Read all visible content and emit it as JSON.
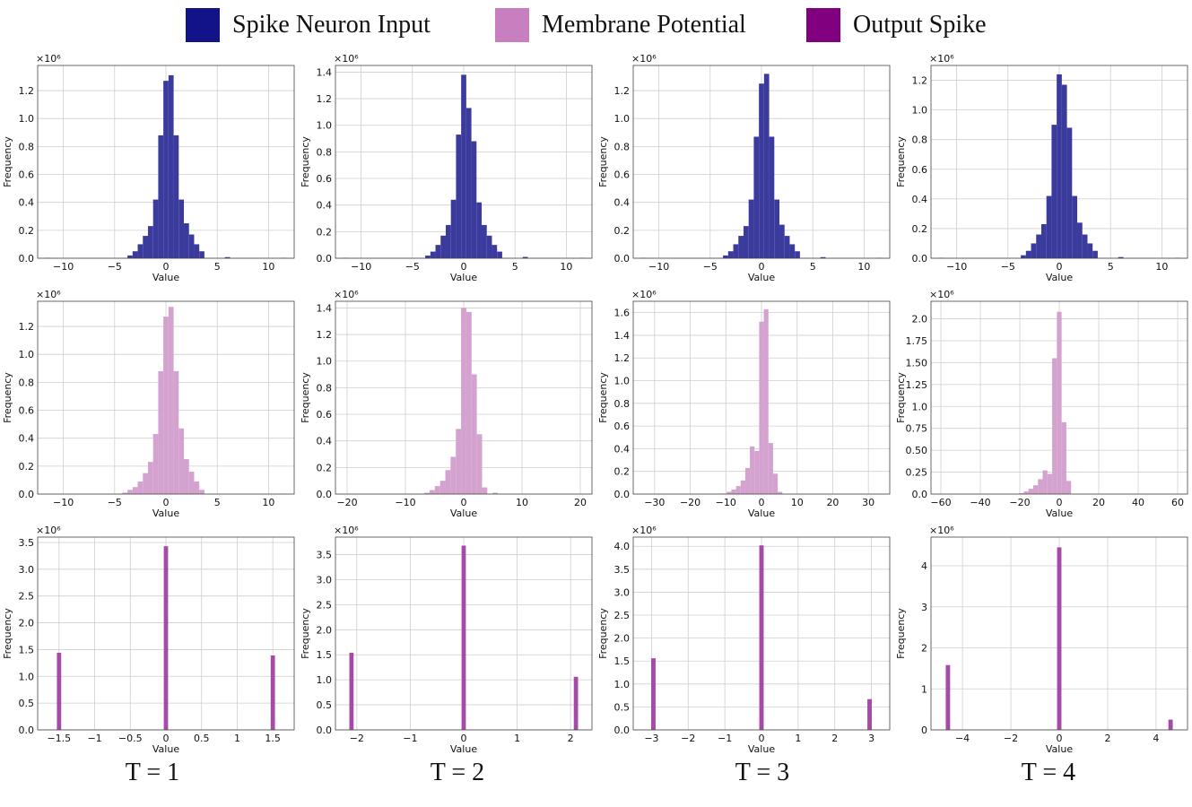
{
  "legend": [
    {
      "label": "Spike Neuron Input",
      "color": "#121289"
    },
    {
      "label": "Membrane Potential",
      "color": "#c77fc0"
    },
    {
      "label": "Output Spike",
      "color": "#800080"
    }
  ],
  "column_labels": [
    "T = 1",
    "T = 2",
    "T = 3",
    "T = 4"
  ],
  "colors": {
    "input": "#3b3b9e",
    "membrane": "#d4a2cf",
    "output": "#a64aa8",
    "grid": "#cfcfcf"
  },
  "chart_data": [
    {
      "type": "bar",
      "row": "input",
      "col": 1,
      "xlabel": "Value",
      "ylabel": "Frequency",
      "scale_label": "×10⁶",
      "xlim": [
        -12.5,
        12.5
      ],
      "ylim": [
        0,
        1.38
      ],
      "xticks": [
        -10,
        -5,
        0,
        5,
        10
      ],
      "yticks": [
        0,
        0.2,
        0.4,
        0.6,
        0.8,
        1.0,
        1.2
      ],
      "bin_width": 0.5,
      "x": [
        -11.5,
        -3.5,
        -3,
        -2.5,
        -2,
        -1.5,
        -1,
        -0.5,
        0,
        0.5,
        1,
        1.5,
        2,
        2.5,
        3,
        3.5,
        6,
        11.5
      ],
      "values": [
        0.003,
        0.02,
        0.05,
        0.1,
        0.16,
        0.23,
        0.42,
        0.88,
        1.27,
        1.31,
        0.88,
        0.42,
        0.25,
        0.17,
        0.1,
        0.05,
        0.008,
        0.003
      ]
    },
    {
      "type": "bar",
      "row": "input",
      "col": 2,
      "xlabel": "Value",
      "ylabel": "Frequency",
      "scale_label": "×10⁶",
      "xlim": [
        -12.5,
        12.5
      ],
      "ylim": [
        0,
        1.45
      ],
      "xticks": [
        -10,
        -5,
        0,
        5,
        10
      ],
      "yticks": [
        0,
        0.2,
        0.4,
        0.6,
        0.8,
        1.0,
        1.2,
        1.4
      ],
      "bin_width": 0.5,
      "x": [
        -11.5,
        -3.5,
        -3,
        -2.5,
        -2,
        -1.5,
        -1,
        -0.5,
        0,
        0.5,
        1,
        1.5,
        2,
        2.5,
        3,
        3.5,
        6,
        11.5
      ],
      "values": [
        0.003,
        0.02,
        0.05,
        0.1,
        0.17,
        0.25,
        0.44,
        0.93,
        1.38,
        1.13,
        0.88,
        0.42,
        0.25,
        0.17,
        0.1,
        0.05,
        0.01,
        0.003
      ]
    },
    {
      "type": "bar",
      "row": "input",
      "col": 3,
      "xlabel": "Value",
      "ylabel": "Frequency",
      "scale_label": "×10⁶",
      "xlim": [
        -12.5,
        12.5
      ],
      "ylim": [
        0,
        1.38
      ],
      "xticks": [
        -10,
        -5,
        0,
        5,
        10
      ],
      "yticks": [
        0,
        0.2,
        0.4,
        0.6,
        0.8,
        1.0,
        1.2
      ],
      "bin_width": 0.5,
      "x": [
        -11.5,
        -3.5,
        -3,
        -2.5,
        -2,
        -1.5,
        -1,
        -0.5,
        0,
        0.5,
        1,
        1.5,
        2,
        2.5,
        3,
        3.5,
        6,
        11.5
      ],
      "values": [
        0.003,
        0.02,
        0.05,
        0.1,
        0.16,
        0.23,
        0.42,
        0.87,
        1.25,
        1.32,
        0.87,
        0.42,
        0.24,
        0.16,
        0.1,
        0.05,
        0.008,
        0.003
      ]
    },
    {
      "type": "bar",
      "row": "input",
      "col": 4,
      "xlabel": "Value",
      "ylabel": "Frequency",
      "scale_label": "×10⁶",
      "xlim": [
        -12.5,
        12.5
      ],
      "ylim": [
        0,
        1.3
      ],
      "xticks": [
        -10,
        -5,
        0,
        5,
        10
      ],
      "yticks": [
        0,
        0.2,
        0.4,
        0.6,
        0.8,
        1.0,
        1.2
      ],
      "bin_width": 0.5,
      "x": [
        -11.5,
        -3.5,
        -3,
        -2.5,
        -2,
        -1.5,
        -1,
        -0.5,
        0,
        0.5,
        1,
        1.5,
        2,
        2.5,
        3,
        3.5,
        6,
        11.5
      ],
      "values": [
        0.003,
        0.02,
        0.05,
        0.1,
        0.16,
        0.23,
        0.42,
        0.9,
        1.24,
        1.17,
        0.88,
        0.42,
        0.24,
        0.16,
        0.1,
        0.05,
        0.008,
        0.003
      ]
    },
    {
      "type": "bar",
      "row": "membrane",
      "col": 1,
      "xlabel": "Value",
      "ylabel": "Frequency",
      "scale_label": "×10⁶",
      "xlim": [
        -12.5,
        12.5
      ],
      "ylim": [
        0,
        1.38
      ],
      "xticks": [
        -10,
        -5,
        0,
        5,
        10
      ],
      "yticks": [
        0,
        0.2,
        0.4,
        0.6,
        0.8,
        1.0,
        1.2
      ],
      "bin_width": 0.5,
      "x": [
        -4,
        -3.5,
        -3,
        -2.5,
        -2,
        -1.5,
        -1,
        -0.5,
        0,
        0.5,
        1,
        1.5,
        2,
        2.5,
        3,
        3.5,
        11.5
      ],
      "values": [
        0.01,
        0.03,
        0.05,
        0.09,
        0.15,
        0.23,
        0.43,
        0.88,
        1.27,
        1.34,
        0.88,
        0.47,
        0.25,
        0.16,
        0.09,
        0.03,
        0.003
      ]
    },
    {
      "type": "bar",
      "row": "membrane",
      "col": 2,
      "xlabel": "Value",
      "ylabel": "Frequency",
      "scale_label": "×10⁶",
      "xlim": [
        -22,
        22
      ],
      "ylim": [
        0,
        1.45
      ],
      "xticks": [
        -20,
        -10,
        0,
        10,
        20
      ],
      "yticks": [
        0,
        0.2,
        0.4,
        0.6,
        0.8,
        1.0,
        1.2,
        1.4
      ],
      "bin_width": 0.9,
      "x": [
        -6.3,
        -5.4,
        -4.5,
        -3.6,
        -2.7,
        -1.8,
        -0.9,
        0,
        0.9,
        1.8,
        2.7,
        3.6,
        5.4,
        20
      ],
      "values": [
        0.01,
        0.03,
        0.06,
        0.1,
        0.18,
        0.28,
        0.49,
        1.4,
        1.37,
        0.9,
        0.45,
        0.05,
        0.01,
        0.003
      ]
    },
    {
      "type": "bar",
      "row": "membrane",
      "col": 3,
      "xlabel": "Value",
      "ylabel": "Frequency",
      "scale_label": "×10⁶",
      "xlim": [
        -36,
        36
      ],
      "ylim": [
        0,
        1.7
      ],
      "xticks": [
        -30,
        -20,
        -10,
        0,
        10,
        20,
        30
      ],
      "yticks": [
        0,
        0.2,
        0.4,
        0.6,
        0.8,
        1.0,
        1.2,
        1.4,
        1.6
      ],
      "bin_width": 1.3,
      "x": [
        -10.4,
        -9.1,
        -7.8,
        -6.5,
        -5.2,
        -3.9,
        -2.6,
        -1.3,
        0,
        1.3,
        2.6,
        3.9,
        5.2,
        32
      ],
      "values": [
        0.005,
        0.02,
        0.04,
        0.07,
        0.12,
        0.23,
        0.42,
        0.38,
        1.52,
        1.63,
        0.45,
        0.18,
        0.02,
        0.002
      ]
    },
    {
      "type": "bar",
      "row": "membrane",
      "col": 4,
      "xlabel": "Value",
      "ylabel": "Frequency",
      "scale_label": "×10⁶",
      "xlim": [
        -65,
        65
      ],
      "ylim": [
        0,
        2.2
      ],
      "xticks": [
        -60,
        -40,
        -20,
        0,
        20,
        40,
        60
      ],
      "yticks": [
        0,
        0.25,
        0.5,
        0.75,
        1.0,
        1.25,
        1.5,
        1.75,
        2.0
      ],
      "bin_width": 2.4,
      "x": [
        -19.2,
        -16.8,
        -14.4,
        -12,
        -9.6,
        -7.2,
        -4.8,
        -2.4,
        0,
        2.4,
        4.8,
        60
      ],
      "values": [
        0.01,
        0.03,
        0.06,
        0.1,
        0.17,
        0.27,
        0.23,
        1.55,
        2.08,
        0.82,
        0.15,
        0.003
      ]
    },
    {
      "type": "bar",
      "row": "output",
      "col": 1,
      "xlabel": "Value",
      "ylabel": "Frequency",
      "scale_label": "×10⁶",
      "xlim": [
        -1.8,
        1.8
      ],
      "ylim": [
        0,
        3.6
      ],
      "xticks": [
        -1.5,
        -1.0,
        -0.5,
        0.0,
        0.5,
        1.0,
        1.5
      ],
      "yticks": [
        0,
        0.5,
        1.0,
        1.5,
        2.0,
        2.5,
        3.0,
        3.5
      ],
      "bin_width": 0.06,
      "x": [
        -1.5,
        0,
        1.5
      ],
      "values": [
        1.44,
        3.43,
        1.39
      ]
    },
    {
      "type": "bar",
      "row": "output",
      "col": 2,
      "xlabel": "Value",
      "ylabel": "Frequency",
      "scale_label": "×10⁶",
      "xlim": [
        -2.4,
        2.4
      ],
      "ylim": [
        0,
        3.85
      ],
      "xticks": [
        -2,
        -1,
        0,
        1,
        2
      ],
      "yticks": [
        0,
        0.5,
        1.0,
        1.5,
        2.0,
        2.5,
        3.0,
        3.5
      ],
      "bin_width": 0.08,
      "x": [
        -2.1,
        0,
        2.1
      ],
      "values": [
        1.54,
        3.68,
        1.06
      ]
    },
    {
      "type": "bar",
      "row": "output",
      "col": 3,
      "xlabel": "Value",
      "ylabel": "Frequency",
      "scale_label": "×10⁶",
      "xlim": [
        -3.5,
        3.5
      ],
      "ylim": [
        0,
        4.2
      ],
      "xticks": [
        -3,
        -2,
        -1,
        0,
        1,
        2,
        3
      ],
      "yticks": [
        0,
        0.5,
        1.0,
        1.5,
        2.0,
        2.5,
        3.0,
        3.5,
        4.0
      ],
      "bin_width": 0.12,
      "x": [
        -2.95,
        0,
        2.95
      ],
      "values": [
        1.56,
        4.02,
        0.67
      ]
    },
    {
      "type": "bar",
      "row": "output",
      "col": 4,
      "xlabel": "Value",
      "ylabel": "Frequency",
      "scale_label": "×10⁶",
      "xlim": [
        -5.3,
        5.3
      ],
      "ylim": [
        0,
        4.7
      ],
      "xticks": [
        -4,
        -2,
        0,
        2,
        4
      ],
      "yticks": [
        0,
        1,
        2,
        3,
        4
      ],
      "bin_width": 0.18,
      "x": [
        -4.6,
        0,
        4.6
      ],
      "values": [
        1.58,
        4.45,
        0.25
      ]
    }
  ]
}
